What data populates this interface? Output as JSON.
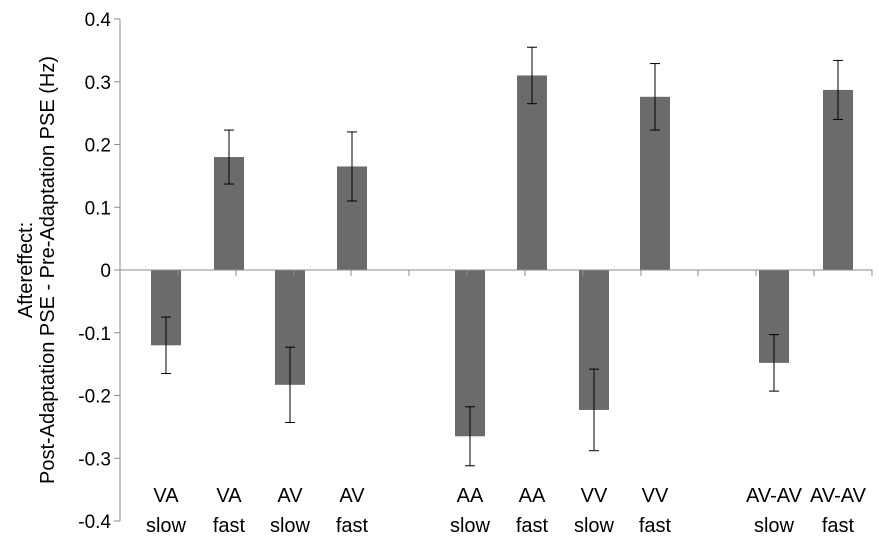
{
  "chart_data": {
    "type": "bar",
    "ylabel_lines": [
      "Aftereffect:",
      "Post-Adaptation PSE - Pre-Adaptation PSE (Hz)"
    ],
    "ylim": [
      -0.4,
      0.4
    ],
    "yticks": [
      "0.4",
      "0.3",
      "0.2",
      "0.1",
      "0",
      "-0.1",
      "-0.2",
      "-0.3",
      "-0.4"
    ],
    "grid": false,
    "bar_color": "#6b6b6b",
    "categories": [
      {
        "line1": "VA",
        "line2": "slow",
        "value": -0.12,
        "err": 0.045
      },
      {
        "line1": "VA",
        "line2": "fast",
        "value": 0.18,
        "err": 0.043
      },
      {
        "line1": "AV",
        "line2": "slow",
        "value": -0.183,
        "err": 0.06
      },
      {
        "line1": "AV",
        "line2": "fast",
        "value": 0.165,
        "err": 0.055
      },
      {
        "line1": "AA",
        "line2": "slow",
        "value": -0.265,
        "err": 0.047
      },
      {
        "line1": "AA",
        "line2": "fast",
        "value": 0.31,
        "err": 0.045
      },
      {
        "line1": "VV",
        "line2": "slow",
        "value": -0.223,
        "err": 0.065
      },
      {
        "line1": "VV",
        "line2": "fast",
        "value": 0.276,
        "err": 0.053
      },
      {
        "line1": "AV-AV",
        "line2": "slow",
        "value": -0.148,
        "err": 0.045
      },
      {
        "line1": "AV-AV",
        "line2": "fast",
        "value": 0.287,
        "err": 0.047
      }
    ]
  }
}
